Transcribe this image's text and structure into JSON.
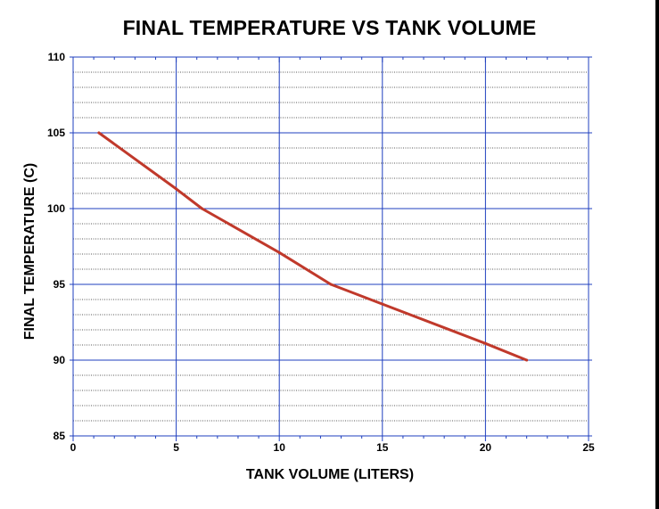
{
  "chart_data": {
    "type": "line",
    "title": "FINAL TEMPERATURE VS TANK VOLUME",
    "xlabel": "TANK VOLUME (LITERS)",
    "ylabel": "FINAL TEMPERATURE (C)",
    "xlim": [
      0,
      25
    ],
    "ylim": [
      85,
      110
    ],
    "xticks": [
      0,
      5,
      10,
      15,
      20,
      25
    ],
    "yticks": [
      85,
      90,
      95,
      100,
      105,
      110
    ],
    "x_minor_step": 1,
    "y_minor_step": 1,
    "grid": true,
    "series": [
      {
        "x": [
          1.25,
          5,
          6.25,
          10,
          12.5,
          15,
          20,
          22
        ],
        "y": [
          105,
          101.3,
          100,
          97.1,
          95,
          93.7,
          91.1,
          90
        ]
      }
    ]
  },
  "colors": {
    "line": "#c0392b",
    "major_grid": "#1f3fbf",
    "minor_grid": "#222222",
    "text": "#000000"
  }
}
